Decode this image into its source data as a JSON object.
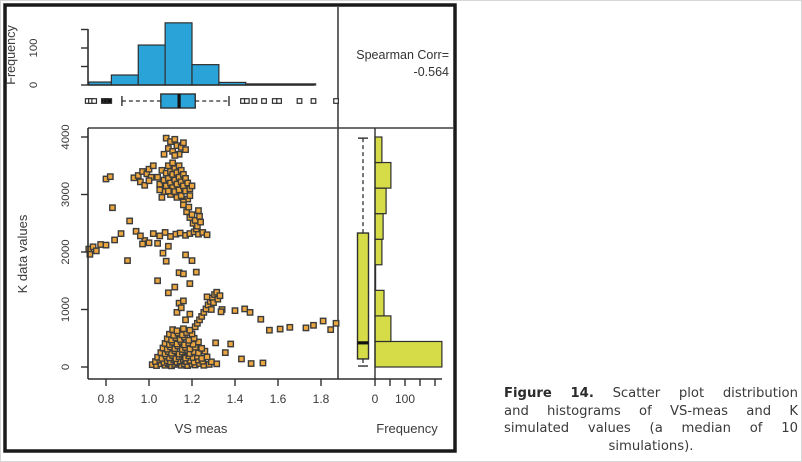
{
  "spearman": {
    "label": "Spearman Corr=",
    "value": "-0.564"
  },
  "caption": {
    "lines": [
      {
        "text": "Figure 14. Scatter plot distribution",
        "bold_prefix": "Figure 14."
      },
      {
        "text": "and histograms of VS-meas and K"
      },
      {
        "text": "simulated values (a median of 10"
      },
      {
        "text": "simulations).",
        "align": "center"
      }
    ]
  },
  "colors": {
    "histogram_blue": "#2aa4d8",
    "histogram_yellow": "#d6dc48",
    "point_orange": "#eba63f",
    "edge_dark": "#2f2f2f",
    "median_dark": "#111111",
    "text_dark": "#3a3a3a",
    "border_black": "#1a1a1a"
  },
  "chart_data": [
    {
      "id": "top_histogram",
      "type": "bar",
      "orientation": "vertical",
      "variable": "VS meas",
      "ylabel": "Frequency",
      "bin_edges": [
        0.7,
        0.825,
        0.95,
        1.075,
        1.2,
        1.325,
        1.45,
        1.775
      ],
      "frequencies": [
        8,
        27,
        108,
        168,
        55,
        7,
        3
      ],
      "yticks": [
        0,
        50,
        100,
        150
      ],
      "ytick_labels": [
        "0",
        "",
        "100",
        ""
      ],
      "ylim": [
        0,
        170
      ],
      "color": "#2aa4d8"
    },
    {
      "id": "top_boxplot",
      "type": "boxplot",
      "orientation": "horizontal",
      "variable": "VS meas",
      "whisker_low": 0.874,
      "q1": 1.055,
      "median": 1.14,
      "q3": 1.215,
      "whisker_high": 1.372,
      "outliers": [
        0.715,
        0.73,
        0.745,
        0.79,
        0.8,
        0.815,
        1.437,
        1.455,
        1.49,
        1.535,
        1.585,
        1.605,
        1.7,
        1.765,
        1.87
      ],
      "filled_outliers": [
        0.79,
        0.8,
        0.815
      ],
      "color": "#2aa4d8"
    },
    {
      "id": "scatter",
      "type": "scatter",
      "xlabel": "VS meas",
      "ylabel": "K data values",
      "marker": "square",
      "color": "#eba63f",
      "xticks": [
        0.8,
        1.0,
        1.2,
        1.4,
        1.6,
        1.8
      ],
      "xtick_labels": [
        "0.8",
        "1.0",
        "1.2",
        "1.4",
        "1.6",
        "1.8"
      ],
      "yticks": [
        0,
        1000,
        2000,
        3000,
        4000
      ],
      "ytick_labels": [
        "0",
        "1000",
        "2000",
        "3000",
        "4000"
      ],
      "xlim": [
        0.716,
        1.879
      ],
      "ylim": [
        -200,
        4190
      ],
      "points": [
        [
          1.04,
          3300
        ],
        [
          1.05,
          3180
        ],
        [
          1.06,
          3420
        ],
        [
          1.07,
          3250
        ],
        [
          1.07,
          3050
        ],
        [
          1.08,
          3370
        ],
        [
          1.08,
          3150
        ],
        [
          1.09,
          3500
        ],
        [
          1.09,
          3280
        ],
        [
          1.1,
          3400
        ],
        [
          1.1,
          3200
        ],
        [
          1.1,
          3000
        ],
        [
          1.11,
          3550
        ],
        [
          1.11,
          3350
        ],
        [
          1.11,
          3120
        ],
        [
          1.12,
          3450
        ],
        [
          1.12,
          3250
        ],
        [
          1.12,
          3050
        ],
        [
          1.13,
          3380
        ],
        [
          1.13,
          3180
        ],
        [
          1.13,
          2950
        ],
        [
          1.14,
          3500
        ],
        [
          1.14,
          3300
        ],
        [
          1.14,
          3080
        ],
        [
          1.15,
          3420
        ],
        [
          1.15,
          3220
        ],
        [
          1.15,
          2980
        ],
        [
          1.16,
          3350
        ],
        [
          1.16,
          3150
        ],
        [
          1.17,
          3280
        ],
        [
          1.17,
          3060
        ],
        [
          1.18,
          3200
        ],
        [
          1.18,
          2920
        ],
        [
          1.19,
          3100
        ],
        [
          1.06,
          2950
        ],
        [
          1.05,
          3080
        ],
        [
          1.16,
          2870
        ],
        [
          1.09,
          3060
        ],
        [
          1.19,
          2980
        ],
        [
          1.2,
          3150
        ],
        [
          1.08,
          3980
        ],
        [
          1.1,
          3920
        ],
        [
          1.12,
          3960
        ],
        [
          1.13,
          3850
        ],
        [
          1.09,
          3800
        ],
        [
          1.11,
          3750
        ],
        [
          1.15,
          3820
        ],
        [
          1.16,
          3900
        ],
        [
          1.07,
          3700
        ],
        [
          1.14,
          3700
        ],
        [
          1.17,
          3780
        ],
        [
          1.12,
          3680
        ],
        [
          0.93,
          3290
        ],
        [
          0.95,
          3330
        ],
        [
          0.97,
          3400
        ],
        [
          0.99,
          3360
        ],
        [
          1.0,
          3440
        ],
        [
          1.01,
          3300
        ],
        [
          0.96,
          3220
        ],
        [
          1.02,
          3500
        ],
        [
          0.98,
          3160
        ],
        [
          1.0,
          3240
        ],
        [
          0.8,
          3270
        ],
        [
          0.82,
          3310
        ],
        [
          0.83,
          2770
        ],
        [
          0.91,
          2540
        ],
        [
          0.94,
          2360
        ],
        [
          1.02,
          2320
        ],
        [
          1.05,
          2280
        ],
        [
          1.075,
          2340
        ],
        [
          1.1,
          2270
        ],
        [
          1.125,
          2310
        ],
        [
          1.145,
          2330
        ],
        [
          1.17,
          2290
        ],
        [
          1.19,
          2320
        ],
        [
          1.21,
          2350
        ],
        [
          1.23,
          2310
        ],
        [
          1.25,
          2340
        ],
        [
          1.27,
          2300
        ],
        [
          0.98,
          2200
        ],
        [
          0.96,
          2280
        ],
        [
          1.16,
          2820
        ],
        [
          1.175,
          2700
        ],
        [
          1.185,
          2780
        ],
        [
          1.19,
          2600
        ],
        [
          1.2,
          2650
        ],
        [
          1.205,
          2500
        ],
        [
          1.215,
          2550
        ],
        [
          1.22,
          2400
        ],
        [
          1.225,
          2450
        ],
        [
          1.235,
          2620
        ],
        [
          1.24,
          2520
        ],
        [
          1.23,
          2720
        ],
        [
          0.72,
          2050
        ],
        [
          0.725,
          1960
        ],
        [
          0.74,
          2090
        ],
        [
          0.755,
          2020
        ],
        [
          0.775,
          2130
        ],
        [
          0.8,
          2120
        ],
        [
          0.84,
          2210
        ],
        [
          0.87,
          2320
        ],
        [
          0.9,
          1850
        ],
        [
          1.065,
          1980
        ],
        [
          1.09,
          2100
        ],
        [
          1.04,
          2150
        ],
        [
          1.0,
          2160
        ],
        [
          0.97,
          2140
        ],
        [
          1.08,
          1840
        ],
        [
          1.14,
          1640
        ],
        [
          1.16,
          1620
        ],
        [
          1.09,
          1290
        ],
        [
          1.14,
          1110
        ],
        [
          1.04,
          1500
        ],
        [
          1.19,
          1450
        ],
        [
          1.22,
          1650
        ],
        [
          1.2,
          1850
        ],
        [
          1.17,
          1950
        ],
        [
          1.015,
          40
        ],
        [
          1.035,
          25
        ],
        [
          1.055,
          55
        ],
        [
          1.075,
          30
        ],
        [
          1.09,
          60
        ],
        [
          1.105,
          20
        ],
        [
          1.12,
          45
        ],
        [
          1.135,
          70
        ],
        [
          1.15,
          30
        ],
        [
          1.165,
          55
        ],
        [
          1.18,
          25
        ],
        [
          1.2,
          50
        ],
        [
          1.215,
          35
        ],
        [
          1.235,
          60
        ],
        [
          1.255,
          30
        ],
        [
          1.28,
          45
        ],
        [
          1.315,
          55
        ],
        [
          1.03,
          95
        ],
        [
          1.05,
          120
        ],
        [
          1.07,
          80
        ],
        [
          1.085,
          110
        ],
        [
          1.1,
          90
        ],
        [
          1.115,
          125
        ],
        [
          1.13,
          85
        ],
        [
          1.145,
          105
        ],
        [
          1.16,
          130
        ],
        [
          1.175,
          95
        ],
        [
          1.19,
          115
        ],
        [
          1.21,
          85
        ],
        [
          1.23,
          120
        ],
        [
          1.25,
          100
        ],
        [
          1.29,
          90
        ],
        [
          1.04,
          170
        ],
        [
          1.06,
          150
        ],
        [
          1.08,
          190
        ],
        [
          1.095,
          160
        ],
        [
          1.11,
          200
        ],
        [
          1.125,
          145
        ],
        [
          1.14,
          180
        ],
        [
          1.155,
          210
        ],
        [
          1.17,
          155
        ],
        [
          1.185,
          195
        ],
        [
          1.205,
          165
        ],
        [
          1.225,
          185
        ],
        [
          1.245,
          150
        ],
        [
          1.27,
          175
        ],
        [
          1.055,
          250
        ],
        [
          1.075,
          230
        ],
        [
          1.09,
          270
        ],
        [
          1.105,
          240
        ],
        [
          1.12,
          285
        ],
        [
          1.14,
          225
        ],
        [
          1.155,
          260
        ],
        [
          1.17,
          290
        ],
        [
          1.19,
          235
        ],
        [
          1.21,
          265
        ],
        [
          1.23,
          245
        ],
        [
          1.26,
          275
        ],
        [
          1.065,
          330
        ],
        [
          1.085,
          310
        ],
        [
          1.1,
          350
        ],
        [
          1.12,
          320
        ],
        [
          1.135,
          365
        ],
        [
          1.155,
          305
        ],
        [
          1.17,
          340
        ],
        [
          1.19,
          315
        ],
        [
          1.215,
          345
        ],
        [
          1.245,
          325
        ],
        [
          1.075,
          410
        ],
        [
          1.095,
          390
        ],
        [
          1.11,
          430
        ],
        [
          1.13,
          400
        ],
        [
          1.15,
          445
        ],
        [
          1.165,
          385
        ],
        [
          1.185,
          420
        ],
        [
          1.205,
          395
        ],
        [
          1.23,
          435
        ],
        [
          1.085,
          490
        ],
        [
          1.105,
          470
        ],
        [
          1.125,
          510
        ],
        [
          1.145,
          480
        ],
        [
          1.165,
          520
        ],
        [
          1.185,
          465
        ],
        [
          1.21,
          500
        ],
        [
          1.095,
          570
        ],
        [
          1.115,
          550
        ],
        [
          1.135,
          590
        ],
        [
          1.155,
          560
        ],
        [
          1.175,
          600
        ],
        [
          1.2,
          575
        ],
        [
          1.11,
          650
        ],
        [
          1.13,
          630
        ],
        [
          1.16,
          665
        ],
        [
          1.19,
          640
        ],
        [
          1.215,
          700
        ],
        [
          1.225,
          760
        ],
        [
          1.235,
          820
        ],
        [
          1.245,
          880
        ],
        [
          1.255,
          950
        ],
        [
          1.265,
          1010
        ],
        [
          1.275,
          1080
        ],
        [
          1.285,
          1140
        ],
        [
          1.295,
          1200
        ],
        [
          1.305,
          1260
        ],
        [
          1.315,
          1300
        ],
        [
          1.3,
          1120
        ],
        [
          1.27,
          1220
        ],
        [
          1.29,
          1000
        ],
        [
          1.32,
          1180
        ],
        [
          1.33,
          1240
        ],
        [
          1.34,
          1000
        ],
        [
          1.335,
          960
        ],
        [
          1.13,
          950
        ],
        [
          1.15,
          1030
        ],
        [
          1.17,
          820
        ],
        [
          1.19,
          920
        ],
        [
          1.16,
          1150
        ],
        [
          1.12,
          1390
        ],
        [
          1.38,
          400
        ],
        [
          1.31,
          420
        ],
        [
          1.355,
          250
        ],
        [
          1.43,
          140
        ],
        [
          1.475,
          60
        ],
        [
          1.53,
          70
        ],
        [
          1.4,
          980
        ],
        [
          1.445,
          1010
        ],
        [
          1.47,
          950
        ],
        [
          1.52,
          830
        ],
        [
          1.56,
          640
        ],
        [
          1.61,
          660
        ],
        [
          1.655,
          690
        ],
        [
          1.73,
          680
        ],
        [
          1.765,
          725
        ],
        [
          1.81,
          800
        ],
        [
          1.845,
          650
        ],
        [
          1.87,
          760
        ]
      ]
    },
    {
      "id": "right_histogram",
      "type": "bar",
      "orientation": "horizontal",
      "variable": "K data values",
      "xlabel": "Frequency",
      "bin_edges": [
        0,
        444,
        889,
        1333,
        1778,
        2222,
        2667,
        3111,
        3556,
        4000
      ],
      "frequencies": [
        223,
        53,
        30,
        2,
        23,
        27,
        37,
        53,
        23
      ],
      "xticks": [
        0,
        50,
        100,
        150,
        200
      ],
      "xtick_labels": [
        "0",
        "",
        "100",
        "",
        ""
      ],
      "xlim": [
        0,
        230
      ],
      "color": "#d6dc48"
    },
    {
      "id": "right_boxplot",
      "type": "boxplot",
      "orientation": "vertical",
      "variable": "K data values",
      "whisker_low": 17,
      "q1": 140,
      "median": 420,
      "q3": 2330,
      "whisker_high": 3980,
      "outliers": [],
      "color": "#d6dc48"
    },
    {
      "id": "correlation_annotation",
      "type": "text",
      "label": "Spearman Corr=",
      "value": -0.564
    }
  ]
}
